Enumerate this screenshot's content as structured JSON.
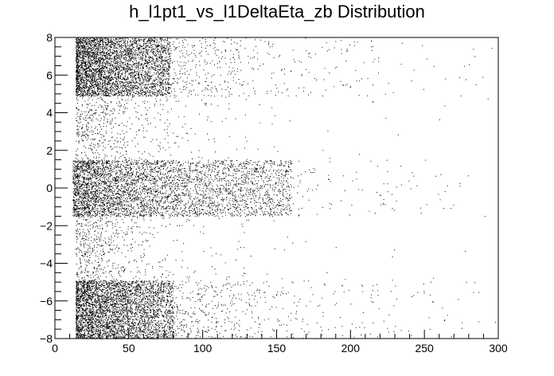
{
  "chart_data": {
    "type": "scatter",
    "title": "h_l1pt1_vs_l1DeltaEta_zb Distribution",
    "xlabel": "",
    "ylabel": "",
    "xlim": [
      0,
      300
    ],
    "ylim": [
      -8,
      8
    ],
    "x_ticks": [
      0,
      50,
      100,
      150,
      200,
      250,
      300
    ],
    "y_ticks": [
      -8,
      -6,
      -4,
      -2,
      0,
      2,
      4,
      6,
      8
    ],
    "grid": false,
    "legend": "none",
    "marker_color": "#000000",
    "clusters": [
      {
        "name": "top",
        "x_range": [
          14,
          175
        ],
        "y_range": [
          4.9,
          8.0
        ],
        "core_x": [
          14,
          78
        ],
        "core_y": [
          4.9,
          8.0
        ]
      },
      {
        "name": "center",
        "x_range": [
          12,
          180
        ],
        "y_range": [
          -1.5,
          1.5
        ],
        "core_x": [
          12,
          160
        ],
        "core_y": [
          -1.5,
          1.5
        ]
      },
      {
        "name": "bottom",
        "x_range": [
          14,
          200
        ],
        "y_range": [
          -8.0,
          -4.9
        ],
        "core_x": [
          14,
          80
        ],
        "core_y": [
          -8.0,
          -4.9
        ]
      }
    ],
    "sparse_region": {
      "x_range": [
        14,
        300
      ],
      "y_range": [
        -8,
        8
      ]
    }
  }
}
